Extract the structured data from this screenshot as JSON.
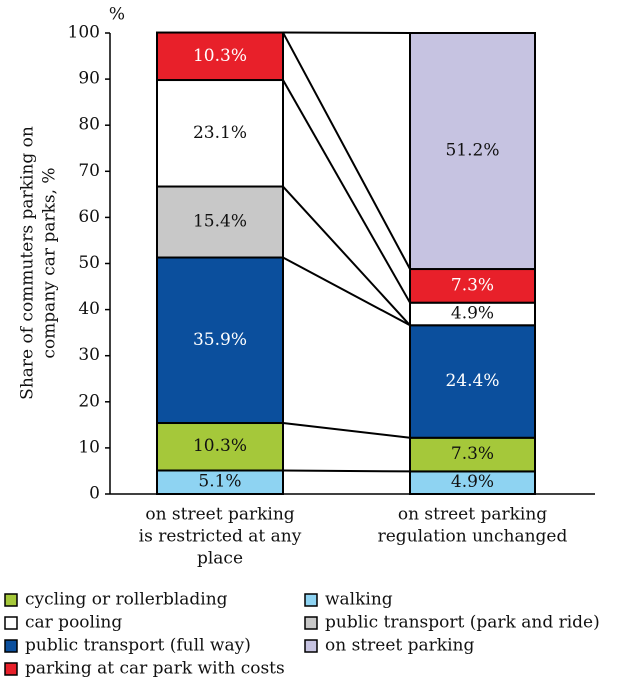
{
  "chart_data": {
    "type": "stacked_bar",
    "y_label": [
      "Share of commuters parking on",
      "company car parks, %"
    ],
    "y_unit": "%",
    "categories": [
      [
        "on street parking",
        "is restricted at any",
        "place"
      ],
      [
        "on street parking",
        "regulation unchanged"
      ]
    ],
    "series": [
      {
        "name": "walking",
        "color": "#8ed3f2",
        "values": [
          5.1,
          4.9
        ],
        "value_labels": [
          "5.1%",
          "4.9%"
        ]
      },
      {
        "name": "cycling or rollerblading",
        "color": "#a5c83a",
        "values": [
          10.3,
          7.3
        ],
        "value_labels": [
          "10.3%",
          "7.3%"
        ]
      },
      {
        "name": "public transport (full way)",
        "color": "#0b4f9d",
        "values": [
          35.9,
          24.4
        ],
        "value_labels": [
          "35.9%",
          "24.4%"
        ]
      },
      {
        "name": "public transport (park and ride)",
        "color": "#c8c8c8",
        "values": [
          15.4,
          0
        ],
        "value_labels": [
          "15.4%",
          null
        ]
      },
      {
        "name": "car pooling",
        "color": "#ffffff",
        "values": [
          23.1,
          4.9
        ],
        "value_labels": [
          "23.1%",
          "4.9%"
        ]
      },
      {
        "name": "parking at car park with costs",
        "color": "#e8202a",
        "values": [
          10.3,
          7.3
        ],
        "value_labels": [
          "10.3%",
          "7.3%"
        ]
      },
      {
        "name": "on street parking",
        "color": "#c6c3e1",
        "values": [
          0,
          51.2
        ],
        "value_labels": [
          null,
          "51.2%"
        ]
      }
    ],
    "ylim": [
      0,
      100
    ],
    "yticks": [
      0,
      10,
      20,
      30,
      40,
      50,
      60,
      70,
      80,
      90,
      100
    ]
  }
}
